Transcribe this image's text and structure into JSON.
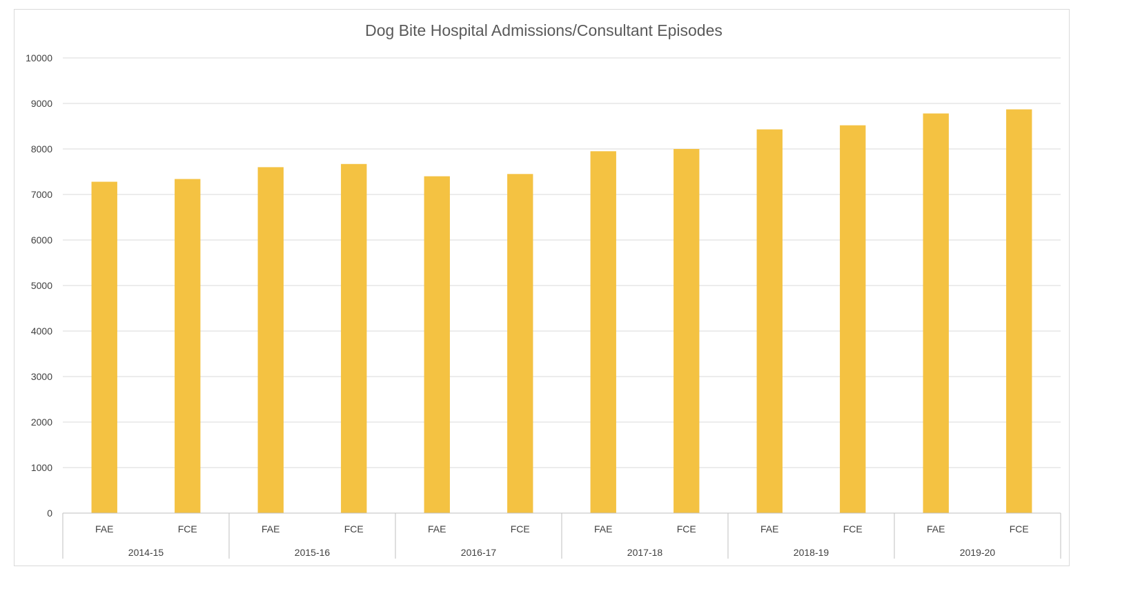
{
  "chart_data": {
    "type": "bar",
    "title": "Dog Bite Hospital Admissions/Consultant Episodes",
    "xlabel": "",
    "ylabel": "",
    "ylim": [
      0,
      10000
    ],
    "yticks": [
      0,
      1000,
      2000,
      3000,
      4000,
      5000,
      6000,
      7000,
      8000,
      9000,
      10000
    ],
    "groups": [
      "2014-15",
      "2015-16",
      "2016-17",
      "2017-18",
      "2018-19",
      "2019-20"
    ],
    "subcategories": [
      "FAE",
      "FCE"
    ],
    "series": [
      {
        "values": [
          7280,
          7340,
          7600,
          7670,
          7400,
          7450,
          7950,
          8000,
          8430,
          8520,
          8780,
          8870
        ]
      }
    ],
    "grid": true,
    "legend": "none",
    "bar_color": "#F4C242"
  }
}
